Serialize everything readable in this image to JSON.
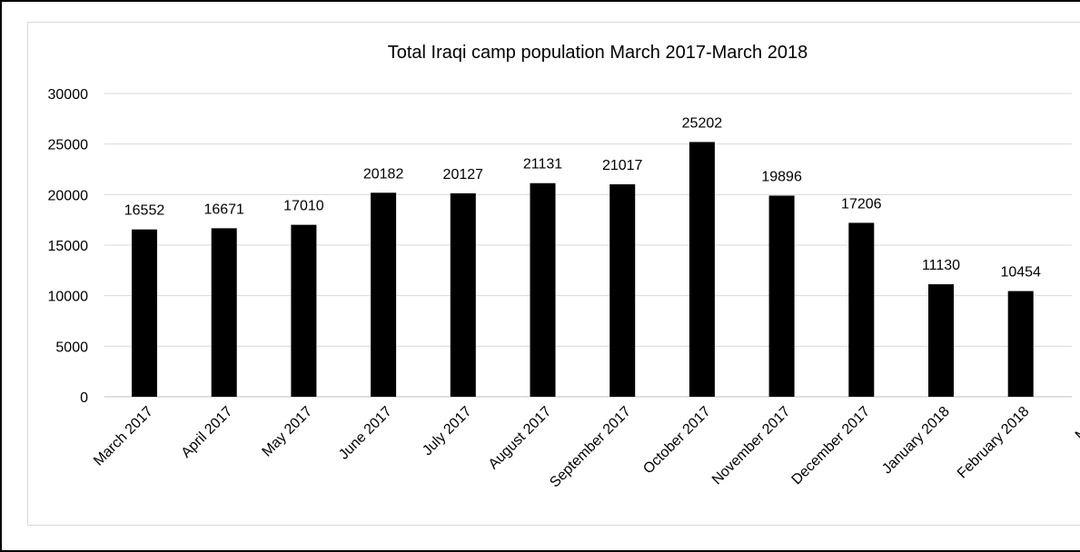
{
  "chart_data": {
    "type": "bar",
    "title": "Total Iraqi camp population March 2017-March 2018",
    "categories": [
      "March 2017",
      "April 2017",
      "May 2017",
      "June 2017",
      "July 2017",
      "August 2017",
      "September 2017",
      "October 2017",
      "November 2017",
      "December 2017",
      "January 2018",
      "February 2018",
      "March"
    ],
    "series": [
      {
        "values": [
          16552,
          16671,
          17010,
          20182,
          20127,
          21131,
          21017,
          25202,
          19896,
          17206,
          11130,
          10454,
          null
        ]
      }
    ],
    "ylim": [
      0,
      30000
    ],
    "yticks": [
      0,
      5000,
      10000,
      15000,
      20000,
      25000,
      30000
    ],
    "grid": true,
    "legend": "none",
    "bar_color": "#000000",
    "grid_color": "#d9d9d9"
  }
}
